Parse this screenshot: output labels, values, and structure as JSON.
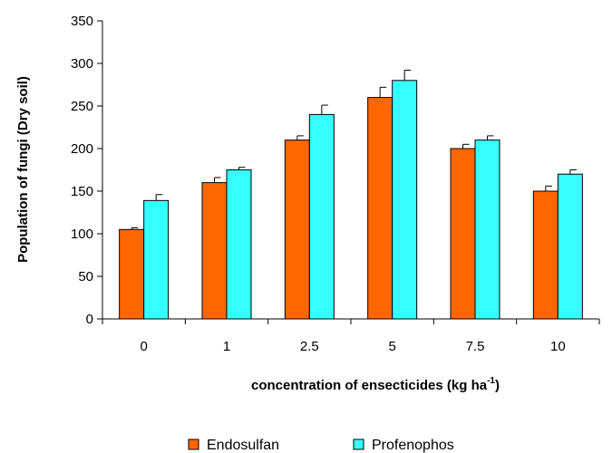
{
  "chart_data": {
    "type": "bar",
    "categories": [
      "0",
      "1",
      "2.5",
      "5",
      "7.5",
      "10"
    ],
    "series": [
      {
        "name": "Endosulfan",
        "color": "#ff6600",
        "values": [
          105,
          160,
          210,
          260,
          200,
          150
        ],
        "errors": [
          2,
          6,
          5,
          12,
          5,
          6
        ]
      },
      {
        "name": "Profenophos",
        "color": "#33ffff",
        "values": [
          139,
          175,
          240,
          280,
          210,
          170
        ],
        "errors": [
          7,
          3,
          11,
          12,
          5,
          5
        ]
      }
    ],
    "xlabel": "concentration of ensecticides (kg ha",
    "xlabel_sup": "-1",
    "xlabel_end": ")",
    "ylabel": "Population of fungi (Dry soil)",
    "ylim": [
      0,
      350
    ],
    "yticks": [
      "0",
      "50",
      "100",
      "150",
      "200",
      "250",
      "300",
      "350"
    ],
    "grid": false,
    "legend": "bottom"
  }
}
